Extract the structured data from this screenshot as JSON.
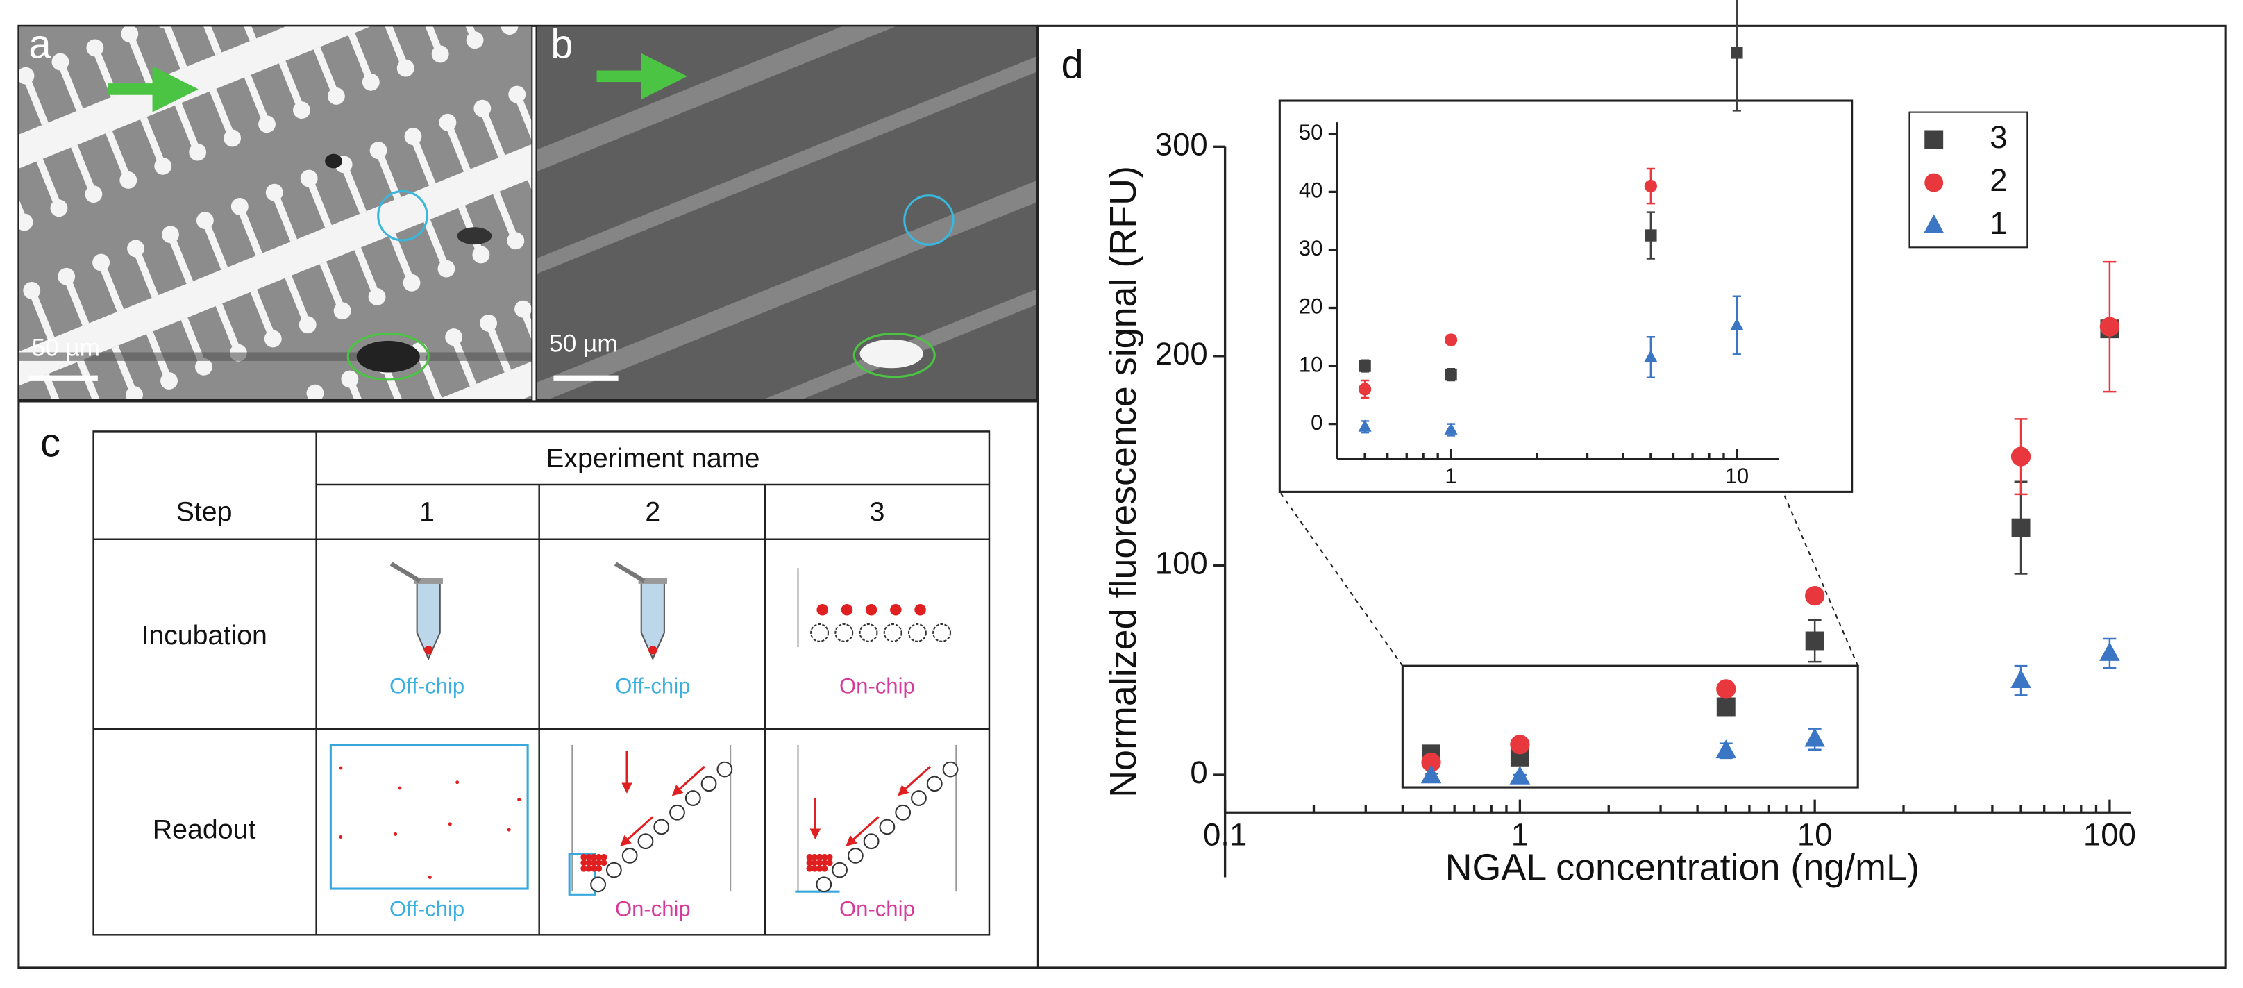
{
  "panels": {
    "a": "a",
    "b": "b",
    "c": "c",
    "d": "d"
  },
  "micrographs": {
    "a": {
      "scale_bar": "50 µm"
    },
    "b": {
      "scale_bar": "50 µm"
    }
  },
  "table": {
    "header": "Experiment name",
    "columns": [
      "Step",
      "1",
      "2",
      "3"
    ],
    "rows": [
      {
        "label": "Incubation",
        "cells": [
          "Off-chip",
          "Off-chip",
          "On-chip"
        ]
      },
      {
        "label": "Readout",
        "cells": [
          "Off-chip",
          "On-chip",
          "On-chip"
        ]
      }
    ]
  },
  "chart_data": {
    "type": "scatter",
    "xlabel": "NGAL concentration (ng/mL)",
    "ylabel": "Normalized fluorescence signal (RFU)",
    "xscale": "log",
    "x": [
      0.5,
      1,
      5,
      10,
      50,
      100
    ],
    "xlim": [
      0.1,
      118
    ],
    "ylim": [
      -18,
      300
    ],
    "xticks": [
      0.1,
      1,
      10,
      100
    ],
    "yticks": [
      0,
      100,
      200,
      300
    ],
    "legend": "upper right",
    "series": [
      {
        "name": "3",
        "color": "#404040",
        "marker": "square",
        "values": [
          10,
          8.5,
          32.5,
          64,
          118,
          213
        ],
        "errors": [
          1,
          1,
          4,
          10,
          22,
          3
        ]
      },
      {
        "name": "2",
        "color": "#e8373d",
        "marker": "circle",
        "values": [
          6,
          14.5,
          41,
          85.5,
          152,
          214
        ],
        "errors": [
          1.5,
          0.8,
          3,
          2,
          18,
          31
        ]
      },
      {
        "name": "1",
        "color": "#3a76c4",
        "marker": "triangle",
        "values": [
          -0.5,
          -1,
          11.5,
          17,
          45,
          58
        ],
        "errors": [
          1,
          1,
          3.5,
          5,
          7,
          7
        ]
      }
    ],
    "inset": {
      "xlim": [
        0.4,
        14
      ],
      "ylim": [
        -6,
        52
      ],
      "xticks": [
        1,
        10
      ],
      "yticks": [
        0,
        10,
        20,
        30,
        40,
        50
      ]
    }
  }
}
